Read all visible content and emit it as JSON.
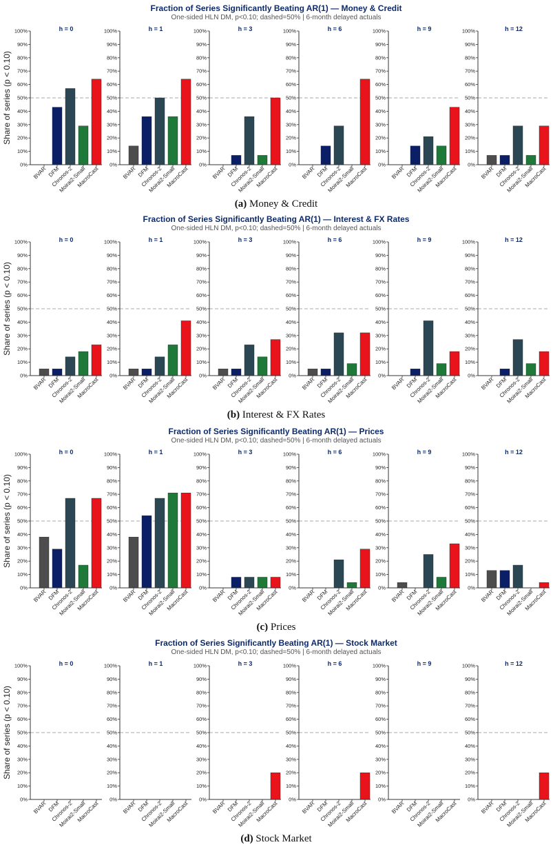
{
  "colors": {
    "title": "#0d2a6b",
    "BVAR": "#4d4d4d",
    "DFM": "#0b1f66",
    "Chronos-2": "#2b4754",
    "Moirai2-Small": "#1f7a3a",
    "MacroCast": "#e8131b",
    "refline": "#aaaaaa"
  },
  "figure": {
    "subtitle": "One-sided HLN DM, p<0.10; dashed=50% | 6-month delayed actuals",
    "ylabel": "Share of series (p < 0.10)"
  },
  "chart_data": [
    {
      "type": "bar",
      "title": "Fraction of Series Significantly Beating AR(1) — Money & Credit",
      "caption_label": "(a)",
      "caption_text": "Money & Credit",
      "categories": [
        "BVAR",
        "DFM",
        "Chronos-2",
        "Moirai2-Small",
        "MacroCast"
      ],
      "ylim": [
        0,
        100
      ],
      "yticks": [
        "0%",
        "10%",
        "20%",
        "30%",
        "40%",
        "50%",
        "60%",
        "70%",
        "80%",
        "90%",
        "100%"
      ],
      "reference_line": 50,
      "panels": [
        {
          "label": "h = 0",
          "values": [
            0,
            43,
            57,
            29,
            64
          ]
        },
        {
          "label": "h = 1",
          "values": [
            14,
            36,
            50,
            36,
            64
          ]
        },
        {
          "label": "h = 3",
          "values": [
            0,
            7,
            36,
            7,
            50
          ]
        },
        {
          "label": "h = 6",
          "values": [
            0,
            14,
            29,
            0,
            64
          ]
        },
        {
          "label": "h = 9",
          "values": [
            0,
            14,
            21,
            14,
            43
          ]
        },
        {
          "label": "h = 12",
          "values": [
            7,
            7,
            29,
            7,
            29
          ]
        }
      ]
    },
    {
      "type": "bar",
      "title": "Fraction of Series Significantly Beating AR(1) — Interest & FX Rates",
      "caption_label": "(b)",
      "caption_text": "Interest & FX Rates",
      "categories": [
        "BVAR",
        "DFM",
        "Chronos-2",
        "Moirai2-Small",
        "MacroCast"
      ],
      "ylim": [
        0,
        100
      ],
      "yticks": [
        "0%",
        "10%",
        "20%",
        "30%",
        "40%",
        "50%",
        "60%",
        "70%",
        "80%",
        "90%",
        "100%"
      ],
      "reference_line": 50,
      "panels": [
        {
          "label": "h = 0",
          "values": [
            5,
            5,
            14,
            18,
            23
          ]
        },
        {
          "label": "h = 1",
          "values": [
            5,
            5,
            14,
            23,
            41
          ]
        },
        {
          "label": "h = 3",
          "values": [
            5,
            5,
            23,
            14,
            27
          ]
        },
        {
          "label": "h = 6",
          "values": [
            5,
            5,
            32,
            9,
            32
          ]
        },
        {
          "label": "h = 9",
          "values": [
            0,
            5,
            41,
            9,
            18
          ]
        },
        {
          "label": "h = 12",
          "values": [
            0,
            5,
            27,
            9,
            18
          ]
        }
      ]
    },
    {
      "type": "bar",
      "title": "Fraction of Series Significantly Beating AR(1) — Prices",
      "caption_label": "(c)",
      "caption_text": "Prices",
      "categories": [
        "BVAR",
        "DFM",
        "Chronos-2",
        "Moirai2-Small",
        "MacroCast"
      ],
      "ylim": [
        0,
        100
      ],
      "yticks": [
        "0%",
        "10%",
        "20%",
        "30%",
        "40%",
        "50%",
        "60%",
        "70%",
        "80%",
        "90%",
        "100%"
      ],
      "reference_line": 50,
      "panels": [
        {
          "label": "h = 0",
          "values": [
            38,
            29,
            67,
            17,
            67
          ]
        },
        {
          "label": "h = 1",
          "values": [
            38,
            54,
            67,
            71,
            71
          ]
        },
        {
          "label": "h = 3",
          "values": [
            0,
            8,
            8,
            8,
            8
          ]
        },
        {
          "label": "h = 6",
          "values": [
            0,
            0,
            21,
            4,
            29
          ]
        },
        {
          "label": "h = 9",
          "values": [
            4,
            0,
            25,
            8,
            33
          ]
        },
        {
          "label": "h = 12",
          "values": [
            13,
            13,
            17,
            0,
            4
          ]
        }
      ]
    },
    {
      "type": "bar",
      "title": "Fraction of Series Significantly Beating AR(1) — Stock Market",
      "caption_label": "(d)",
      "caption_text": "Stock Market",
      "categories": [
        "BVAR",
        "DFM",
        "Chronos-2",
        "Moirai2-Small",
        "MacroCast"
      ],
      "ylim": [
        0,
        100
      ],
      "yticks": [
        "0%",
        "10%",
        "20%",
        "30%",
        "40%",
        "50%",
        "60%",
        "70%",
        "80%",
        "90%",
        "100%"
      ],
      "reference_line": 50,
      "panels": [
        {
          "label": "h = 0",
          "values": [
            0,
            0,
            0,
            0,
            0
          ]
        },
        {
          "label": "h = 1",
          "values": [
            0,
            0,
            0,
            0,
            0
          ]
        },
        {
          "label": "h = 3",
          "values": [
            0,
            0,
            0,
            0,
            20
          ]
        },
        {
          "label": "h = 6",
          "values": [
            0,
            0,
            0,
            0,
            20
          ]
        },
        {
          "label": "h = 9",
          "values": [
            0,
            0,
            0,
            0,
            0
          ]
        },
        {
          "label": "h = 12",
          "values": [
            0,
            0,
            0,
            0,
            20
          ]
        }
      ]
    }
  ]
}
